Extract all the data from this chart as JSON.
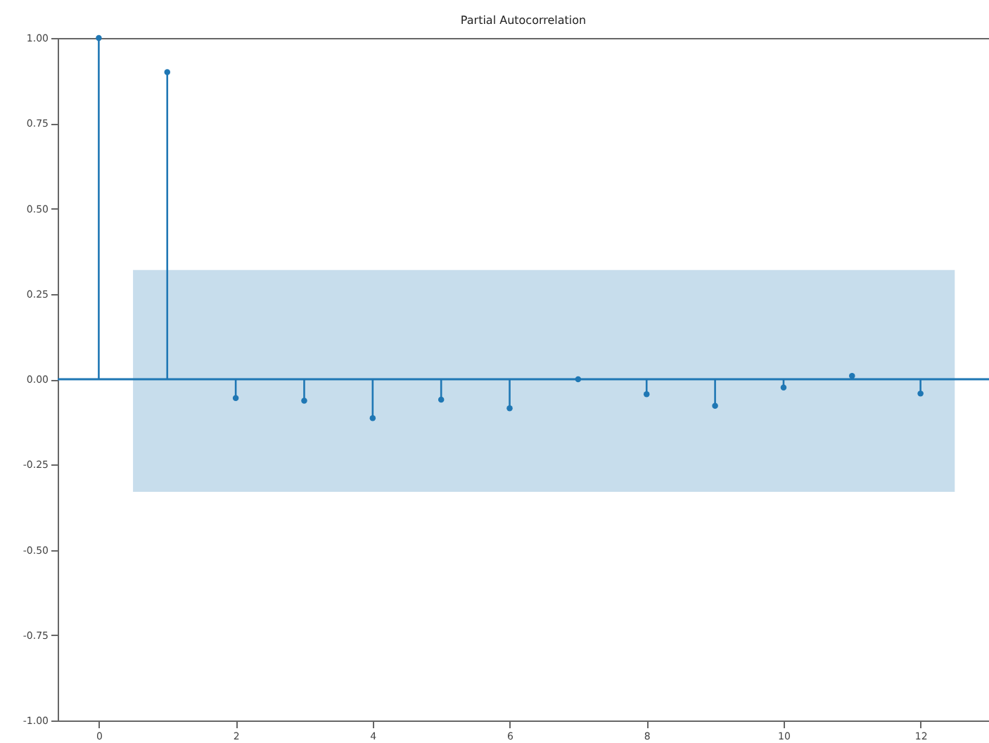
{
  "chart_data": {
    "type": "lollipop",
    "title": "Partial Autocorrelation",
    "x": [
      0,
      1,
      2,
      3,
      4,
      5,
      6,
      7,
      8,
      9,
      10,
      11,
      12
    ],
    "series": [
      {
        "color": "#1f77b4",
        "values": [
          1.0,
          0.9,
          -0.055,
          -0.063,
          -0.114,
          -0.06,
          -0.085,
          0.0,
          -0.044,
          -0.078,
          -0.024,
          0.01,
          -0.042
        ]
      }
    ],
    "xlim": [
      -0.6,
      13
    ],
    "xticks": [
      0,
      2,
      4,
      6,
      8,
      10,
      12
    ],
    "ylim": [
      -1,
      1
    ],
    "yticks": [
      {
        "value": -1,
        "label": "-1.00"
      },
      {
        "value": -0.75,
        "label": "-0.75"
      },
      {
        "value": -0.5,
        "label": "-0.50"
      },
      {
        "value": -0.25,
        "label": "-0.25"
      },
      {
        "value": 0,
        "label": "0.00"
      },
      {
        "value": 0.25,
        "label": "0.25"
      },
      {
        "value": 0.5,
        "label": "0.50"
      },
      {
        "value": 0.75,
        "label": "0.75"
      },
      {
        "value": 1,
        "label": "1.00"
      }
    ],
    "bands": [
      {
        "axis": "y",
        "from": -0.33,
        "to": 0.32,
        "color": "#1f77b4"
      }
    ],
    "ref_lines": [
      {
        "axis": "y",
        "value": 0,
        "color": "#1f77b4"
      }
    ],
    "marker": "circle",
    "grid": false
  }
}
